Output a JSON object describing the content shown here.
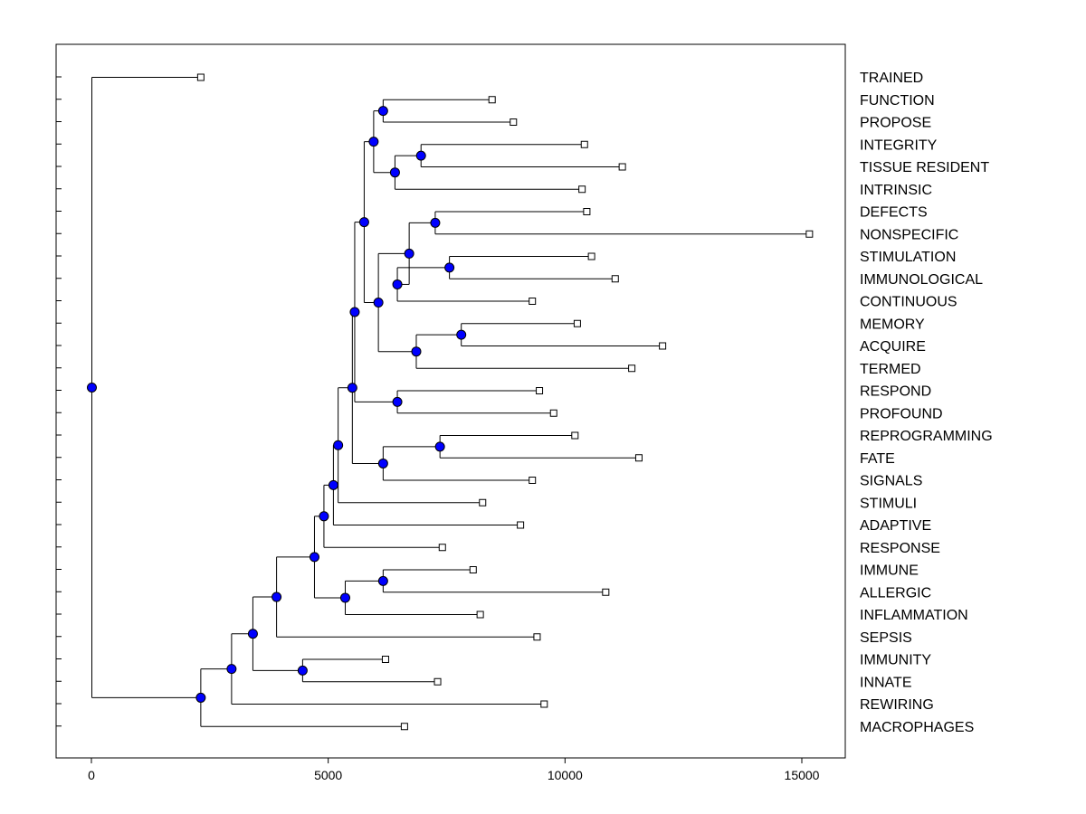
{
  "chart_data": {
    "type": "dendrogram",
    "title": "",
    "xlabel": "",
    "ylabel": "",
    "xlim": [
      -1200,
      15800
    ],
    "x_ticks": [
      0,
      5000,
      10000,
      15000
    ],
    "x_tick_labels": [
      "0",
      "5000",
      "10000",
      "15000"
    ],
    "node_color": "#0000ff",
    "leaves": [
      {
        "label": "TRAINED",
        "value": 2300
      },
      {
        "label": "FUNCTION",
        "value": 8450
      },
      {
        "label": "PROPOSE",
        "value": 8900
      },
      {
        "label": "INTEGRITY",
        "value": 10400
      },
      {
        "label": "TISSUE RESIDENT",
        "value": 11200
      },
      {
        "label": "INTRINSIC",
        "value": 10350
      },
      {
        "label": "DEFECTS",
        "value": 10450
      },
      {
        "label": "NONSPECIFIC",
        "value": 15150
      },
      {
        "label": "STIMULATION",
        "value": 10550
      },
      {
        "label": "IMMUNOLOGICAL",
        "value": 11050
      },
      {
        "label": "CONTINUOUS",
        "value": 9300
      },
      {
        "label": "MEMORY",
        "value": 10250
      },
      {
        "label": "ACQUIRE",
        "value": 12050
      },
      {
        "label": "TERMED",
        "value": 11400
      },
      {
        "label": "RESPOND",
        "value": 9450
      },
      {
        "label": "PROFOUND",
        "value": 9750
      },
      {
        "label": "REPROGRAMMING",
        "value": 10200
      },
      {
        "label": "FATE",
        "value": 11550
      },
      {
        "label": "SIGNALS",
        "value": 9300
      },
      {
        "label": "STIMULI",
        "value": 8250
      },
      {
        "label": "ADAPTIVE",
        "value": 9050
      },
      {
        "label": "RESPONSE",
        "value": 7400
      },
      {
        "label": "IMMUNE",
        "value": 8050
      },
      {
        "label": "ALLERGIC",
        "value": 10850
      },
      {
        "label": "INFLAMMATION",
        "value": 8200
      },
      {
        "label": "SEPSIS",
        "value": 9400
      },
      {
        "label": "IMMUNITY",
        "value": 6200
      },
      {
        "label": "INNATE",
        "value": 7300
      },
      {
        "label": "REWIRING",
        "value": 9550
      },
      {
        "label": "MACROPHAGES",
        "value": 6600
      }
    ],
    "merges": [
      {
        "id": "n1",
        "value": 6150,
        "children": [
          "FUNCTION",
          "PROPOSE"
        ]
      },
      {
        "id": "n2",
        "value": 6950,
        "children": [
          "INTEGRITY",
          "TISSUE RESIDENT"
        ]
      },
      {
        "id": "n3",
        "value": 6400,
        "children": [
          "n2",
          "INTRINSIC"
        ]
      },
      {
        "id": "n4",
        "value": 5950,
        "children": [
          "n1",
          "n3"
        ]
      },
      {
        "id": "n5",
        "value": 7250,
        "children": [
          "DEFECTS",
          "NONSPECIFIC"
        ]
      },
      {
        "id": "n6",
        "value": 7550,
        "children": [
          "STIMULATION",
          "IMMUNOLOGICAL"
        ]
      },
      {
        "id": "n7",
        "value": 6450,
        "children": [
          "n6",
          "CONTINUOUS"
        ]
      },
      {
        "id": "n8",
        "value": 6700,
        "children": [
          "n5",
          "n7"
        ]
      },
      {
        "id": "n9",
        "value": 7800,
        "children": [
          "MEMORY",
          "ACQUIRE"
        ]
      },
      {
        "id": "n10",
        "value": 6850,
        "children": [
          "n9",
          "TERMED"
        ]
      },
      {
        "id": "n11",
        "value": 6050,
        "children": [
          "n8",
          "n10"
        ]
      },
      {
        "id": "n12",
        "value": 5750,
        "children": [
          "n4",
          "n11"
        ]
      },
      {
        "id": "n13",
        "value": 6450,
        "children": [
          "RESPOND",
          "PROFOUND"
        ]
      },
      {
        "id": "n14",
        "value": 5550,
        "children": [
          "n12",
          "n13"
        ]
      },
      {
        "id": "n15",
        "value": 7350,
        "children": [
          "REPROGRAMMING",
          "FATE"
        ]
      },
      {
        "id": "n16",
        "value": 6150,
        "children": [
          "n15",
          "SIGNALS"
        ]
      },
      {
        "id": "n17",
        "value": 5500,
        "children": [
          "n14",
          "n16"
        ]
      },
      {
        "id": "n18",
        "value": 5200,
        "children": [
          "n17",
          "STIMULI"
        ]
      },
      {
        "id": "n19",
        "value": 5100,
        "children": [
          "n18",
          "ADAPTIVE"
        ]
      },
      {
        "id": "n20",
        "value": 4900,
        "children": [
          "n19",
          "RESPONSE"
        ]
      },
      {
        "id": "n21",
        "value": 6150,
        "children": [
          "IMMUNE",
          "ALLERGIC"
        ]
      },
      {
        "id": "n22",
        "value": 5350,
        "children": [
          "n21",
          "INFLAMMATION"
        ]
      },
      {
        "id": "n23",
        "value": 4700,
        "children": [
          "n20",
          "n22"
        ]
      },
      {
        "id": "n24",
        "value": 3900,
        "children": [
          "n23",
          "SEPSIS"
        ]
      },
      {
        "id": "n25",
        "value": 4450,
        "children": [
          "IMMUNITY",
          "INNATE"
        ]
      },
      {
        "id": "n26",
        "value": 3400,
        "children": [
          "n24",
          "n25"
        ]
      },
      {
        "id": "n27",
        "value": 2950,
        "children": [
          "n26",
          "REWIRING"
        ]
      },
      {
        "id": "n28",
        "value": 2300,
        "children": [
          "n27",
          "MACROPHAGES"
        ]
      },
      {
        "id": "root",
        "value": 0,
        "children": [
          "TRAINED",
          "n28"
        ]
      }
    ]
  }
}
